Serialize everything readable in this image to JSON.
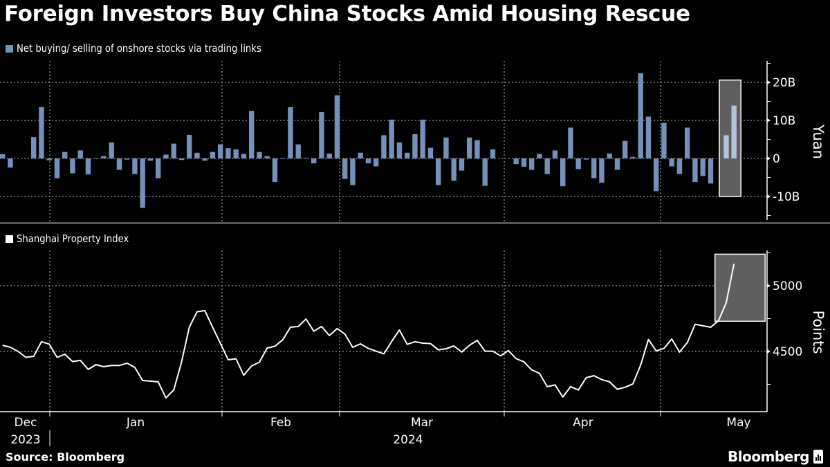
{
  "title": "Foreign Investors Buy China Stocks Amid Housing Rescue",
  "source": "Source: Bloomberg",
  "brand": "Bloomberg",
  "colors": {
    "bar": "#7591b9",
    "bar_highlight": "#b4c3dc",
    "line": "#ffffff",
    "highlight_box": "#5f5f5f",
    "background": "#000000"
  },
  "x_axis": {
    "months": [
      "Dec",
      "Jan",
      "Feb",
      "Mar",
      "Apr",
      "May"
    ],
    "years": [
      "2023",
      "2024"
    ]
  },
  "chart_data": [
    {
      "type": "bar",
      "legend": "Net buying/ selling of onshore stocks via trading links",
      "ylabel": "Yuan",
      "yticks": [
        "20B",
        "10B",
        "0",
        "-10B"
      ],
      "ytick_values": [
        20,
        10,
        0,
        -10
      ],
      "ylim": [
        -16,
        25
      ],
      "unit": "billion yuan",
      "grid": true,
      "highlight_last": 2,
      "values": [
        1.1,
        -2.4,
        null,
        null,
        5.6,
        13.5,
        -0.5,
        -5.2,
        1.7,
        -3.9,
        2.1,
        -4.2,
        0.1,
        0.6,
        4.2,
        -3.0,
        -0.3,
        -4.1,
        -13.0,
        -0.6,
        -5.2,
        1.0,
        3.9,
        -0.4,
        6.2,
        1.5,
        -0.6,
        1.7,
        3.7,
        2.7,
        2.4,
        1.2,
        12.5,
        1.7,
        0.6,
        -6.2,
        0.1,
        13.5,
        3.7,
        0.1,
        -1.3,
        12.2,
        1.3,
        16.6,
        -5.4,
        -7.0,
        1.5,
        -1.3,
        -2.1,
        6.1,
        10.2,
        4.2,
        1.5,
        6.4,
        10.2,
        2.8,
        -7.0,
        5.5,
        -5.9,
        -3.2,
        5.5,
        4.8,
        -7.2,
        2.4,
        null,
        null,
        -1.5,
        -2.2,
        -3.0,
        1.2,
        -4.1,
        2.1,
        -7.3,
        8.1,
        -2.8,
        -0.3,
        -5.2,
        -6.4,
        1.3,
        -3.0,
        4.6,
        0.4,
        22.4,
        11.0,
        -8.6,
        9.3,
        -2.1,
        -4.1,
        8.1,
        -6.2,
        -4.6,
        -6.6,
        null,
        6.1,
        13.9
      ]
    },
    {
      "type": "line",
      "legend": "Shanghai Property Index",
      "ylabel": "Points",
      "yticks": [
        "5000",
        "4500"
      ],
      "ytick_values": [
        5000,
        4500
      ],
      "ylim": [
        4040,
        5270
      ],
      "grid": true,
      "highlight_last": 3,
      "values": [
        4547,
        4532,
        4500,
        4455,
        4463,
        4574,
        4556,
        4455,
        4479,
        4423,
        4432,
        4363,
        4400,
        4384,
        4393,
        4393,
        4411,
        4379,
        4279,
        4274,
        4269,
        4147,
        4207,
        4418,
        4684,
        4802,
        4811,
        4684,
        4561,
        4437,
        4444,
        4319,
        4390,
        4418,
        4526,
        4540,
        4588,
        4684,
        4690,
        4747,
        4654,
        4690,
        4621,
        4674,
        4632,
        4532,
        4558,
        4523,
        4502,
        4482,
        4576,
        4663,
        4554,
        4574,
        4563,
        4560,
        4512,
        4521,
        4542,
        4495,
        4547,
        4584,
        4502,
        4502,
        4467,
        4507,
        4446,
        4421,
        4360,
        4333,
        4232,
        4246,
        4153,
        4232,
        4207,
        4300,
        4316,
        4286,
        4269,
        4212,
        4228,
        4253,
        4396,
        4591,
        4504,
        4523,
        4595,
        4495,
        4568,
        4707,
        4695,
        4684,
        4733,
        4872,
        5167
      ]
    }
  ]
}
